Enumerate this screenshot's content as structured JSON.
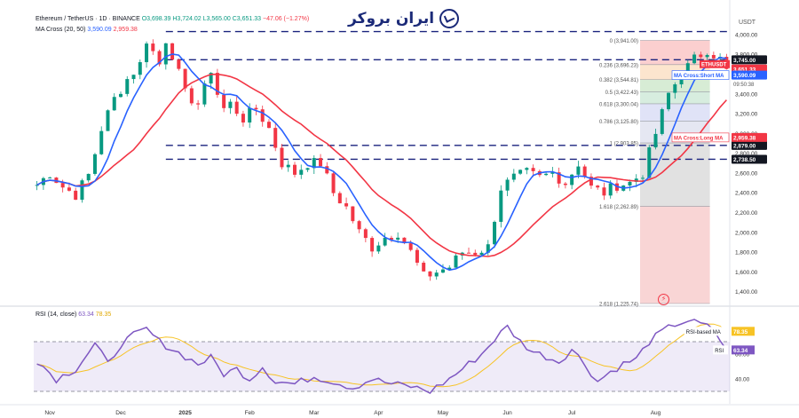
{
  "watermark": {
    "text": "ایران بروکر",
    "icon": "chart-arrow-logo-icon"
  },
  "header": {
    "title": "Ethereum / TetherUS · 1D · BINANCE",
    "open": "O3,698.39",
    "high": "H3,724.02",
    "low": "L3,565.00",
    "close": "C3,651.33",
    "change": "−47.06 (−1.27%)"
  },
  "ma_legend": {
    "label": "MA Cross (20, 50)",
    "short_value": "3,590.09",
    "long_value": "2,959.38"
  },
  "rsi_legend": {
    "label": "RSI (14, close)",
    "rsi_value": "63.34",
    "ma_value": "78.35"
  },
  "axis": {
    "currency": "USDT"
  },
  "chart_data": [
    {
      "type": "candlestick",
      "symbol": "ETHUSDT",
      "timeframe": "1D",
      "exchange": "BINANCE",
      "x_tick_labels": [
        "Nov",
        "Dec",
        "2025",
        "Feb",
        "Mar",
        "Apr",
        "May",
        "Jun",
        "Jul",
        "Aug"
      ],
      "y_tick_labels": [
        "4,000.00",
        "3,800.00",
        "3,600.00",
        "3,400.00",
        "3,200.00",
        "3,000.00",
        "2,800.00",
        "2,600.00",
        "2,400.00",
        "2,200.00",
        "2,000.00",
        "1,800.00",
        "1,600.00",
        "1,400.00"
      ],
      "ylim": [
        1280,
        4080
      ],
      "price_path": [
        [
          0,
          2480
        ],
        [
          2,
          2600
        ],
        [
          4,
          2460
        ],
        [
          6,
          2380
        ],
        [
          8,
          2580
        ],
        [
          9,
          2800
        ],
        [
          10,
          3050
        ],
        [
          12,
          3350
        ],
        [
          14,
          3550
        ],
        [
          16,
          3700
        ],
        [
          17,
          3950
        ],
        [
          19,
          3700
        ],
        [
          20,
          3950
        ],
        [
          21,
          3800
        ],
        [
          22,
          3600
        ],
        [
          23,
          3400
        ],
        [
          25,
          3300
        ],
        [
          26,
          3450
        ],
        [
          27,
          3650
        ],
        [
          28,
          3400
        ],
        [
          29,
          3250
        ],
        [
          30,
          3300
        ],
        [
          32,
          3150
        ],
        [
          34,
          3250
        ],
        [
          36,
          3050
        ],
        [
          38,
          2700
        ],
        [
          40,
          2600
        ],
        [
          42,
          2700
        ],
        [
          44,
          2700
        ],
        [
          46,
          2400
        ],
        [
          48,
          2250
        ],
        [
          50,
          2000
        ],
        [
          52,
          1850
        ],
        [
          54,
          1950
        ],
        [
          56,
          2000
        ],
        [
          58,
          1800
        ],
        [
          60,
          1550
        ],
        [
          62,
          1600
        ],
        [
          64,
          1650
        ],
        [
          66,
          1800
        ],
        [
          68,
          1800
        ],
        [
          70,
          1850
        ],
        [
          72,
          2450
        ],
        [
          74,
          2550
        ],
        [
          76,
          2600
        ],
        [
          78,
          2550
        ],
        [
          80,
          2600
        ],
        [
          82,
          2500
        ],
        [
          84,
          2700
        ],
        [
          86,
          2450
        ],
        [
          88,
          2400
        ],
        [
          90,
          2480
        ],
        [
          92,
          2500
        ],
        [
          94,
          2600
        ],
        [
          96,
          3000
        ],
        [
          98,
          3400
        ],
        [
          100,
          3600
        ],
        [
          102,
          3750
        ],
        [
          104,
          3850
        ],
        [
          106,
          3750
        ],
        [
          107,
          3651
        ]
      ],
      "bar_count": 108,
      "horizontal_levels": [
        {
          "value": 4030,
          "label": ""
        },
        {
          "value": 3745.0,
          "label": "3,745.00"
        },
        {
          "value": 2879.0,
          "label": "2,879.00"
        },
        {
          "value": 2738.5,
          "label": "2,738.50"
        }
      ],
      "series": [
        {
          "name": "MA Cross:Short MA",
          "last_value": "3,590.09",
          "color": "#2962ff"
        },
        {
          "name": "MA Cross:Long MA",
          "last_value": "2,959.38",
          "color": "#f23645"
        }
      ],
      "price_tags": [
        {
          "label": "ETHUSDT",
          "value": "3,651.33",
          "sub": [
            "+40.12%",
            "09:50:38"
          ],
          "color": "#f23645"
        }
      ],
      "fibonacci": [
        {
          "ratio": "0",
          "price": "3,941.00"
        },
        {
          "ratio": "0.236",
          "price": "3,696.23"
        },
        {
          "ratio": "0.382",
          "price": "3,544.81"
        },
        {
          "ratio": "0.5",
          "price": "3,422.43"
        },
        {
          "ratio": "0.618",
          "price": "3,300.04"
        },
        {
          "ratio": "0.786",
          "price": "3,125.80"
        },
        {
          "ratio": "1",
          "price": "2,903.85"
        },
        {
          "ratio": "1.618",
          "price": "2,262.89"
        },
        {
          "ratio": "2.618",
          "price": "1,225.74"
        }
      ]
    },
    {
      "type": "line",
      "title": "RSI (14, close)",
      "ylim": [
        20,
        95
      ],
      "upper_band": 70,
      "lower_band": 30,
      "y_tick_labels": [
        "60.00",
        "40.00"
      ],
      "rsi_path": [
        [
          0,
          55
        ],
        [
          3,
          40
        ],
        [
          6,
          48
        ],
        [
          9,
          68
        ],
        [
          11,
          52
        ],
        [
          13,
          68
        ],
        [
          15,
          75
        ],
        [
          17,
          80
        ],
        [
          19,
          70
        ],
        [
          21,
          64
        ],
        [
          23,
          58
        ],
        [
          25,
          52
        ],
        [
          27,
          57
        ],
        [
          29,
          44
        ],
        [
          31,
          48
        ],
        [
          33,
          40
        ],
        [
          35,
          50
        ],
        [
          37,
          38
        ],
        [
          40,
          36
        ],
        [
          43,
          42
        ],
        [
          46,
          38
        ],
        [
          49,
          33
        ],
        [
          52,
          40
        ],
        [
          55,
          36
        ],
        [
          58,
          34
        ],
        [
          61,
          30
        ],
        [
          64,
          40
        ],
        [
          67,
          52
        ],
        [
          69,
          60
        ],
        [
          71,
          72
        ],
        [
          73,
          82
        ],
        [
          75,
          70
        ],
        [
          77,
          62
        ],
        [
          79,
          58
        ],
        [
          81,
          54
        ],
        [
          83,
          64
        ],
        [
          85,
          52
        ],
        [
          87,
          38
        ],
        [
          89,
          46
        ],
        [
          91,
          52
        ],
        [
          93,
          56
        ],
        [
          95,
          70
        ],
        [
          97,
          78
        ],
        [
          99,
          84
        ],
        [
          101,
          87
        ],
        [
          103,
          84
        ],
        [
          105,
          80
        ],
        [
          107,
          63
        ]
      ],
      "series": [
        {
          "name": "RSI",
          "last_value": "63.34",
          "color": "#7e57c2"
        },
        {
          "name": "RSI-based MA",
          "last_value": "78.35",
          "color": "#f7c325"
        }
      ]
    }
  ]
}
